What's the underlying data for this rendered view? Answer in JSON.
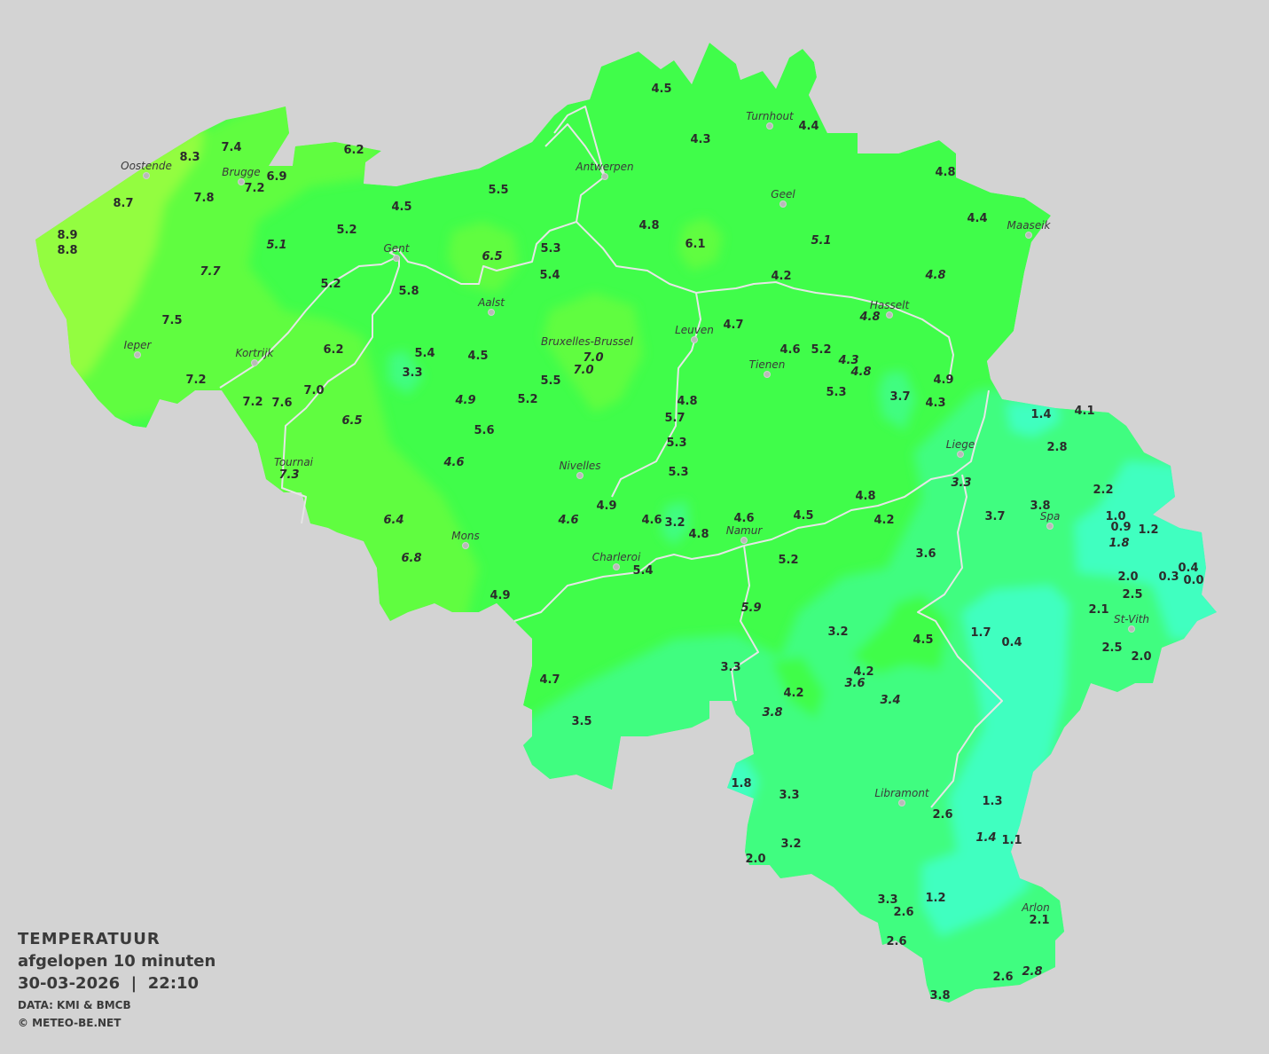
{
  "legend": {
    "title": "TEMPERATUUR",
    "subtitle": "afgelopen 10 minuten",
    "datetime": "30-03-2026  |  22:10",
    "source": "DATA: KMI & BMCB",
    "copyright": "© METEO-BE.NET"
  },
  "colors": {
    "background": "#d3d3d3",
    "zone_9": "#93fd40",
    "zone_7": "#60fd40",
    "zone_5": "#40fd4a",
    "zone_3": "#40fd80",
    "zone_1": "#40ffc0",
    "river": "#e6e6e6",
    "label": "#2b2b2b"
  },
  "cities": [
    "Oostende",
    "Brugge",
    "Gent",
    "Antwerpen",
    "Turnhout",
    "Geel",
    "Maaseik",
    "Aalst",
    "Hasselt",
    "Leuven",
    "Bruxelles-Brussel",
    "Tienen",
    "Ieper",
    "Kortrijk",
    "Liege",
    "Tournai",
    "Nivelles",
    "Spa",
    "Mons",
    "Charleroi",
    "Namur",
    "St-Vith",
    "Libramont",
    "Arlon"
  ],
  "readings": [
    "7.4",
    "8.3",
    "6.2",
    "6.9",
    "7.2",
    "8.7",
    "7.8",
    "8.9",
    "8.8",
    "5.1",
    "5.2",
    "4.5",
    "5.5",
    "7.7",
    "5.2",
    "5.8",
    "6.5",
    "5.3",
    "5.4",
    "7.5",
    "6.2",
    "5.4",
    "4.5",
    "3.3",
    "7.2",
    "7.0",
    "7.2",
    "7.6",
    "4.9",
    "5.2",
    "5.5",
    "6.5",
    "5.6",
    "4.6",
    "7.3",
    "6.4",
    "6.8",
    "4.9",
    "4.6",
    "4.9",
    "4.6",
    "3.2",
    "4.8",
    "4.6",
    "5.4",
    "4.7",
    "3.5",
    "4.5",
    "4.3",
    "4.4",
    "4.8",
    "4.4",
    "4.8",
    "6.1",
    "5.1",
    "4.2",
    "4.8",
    "4.7",
    "4.8",
    "7.0",
    "7.0",
    "4.6",
    "5.2",
    "4.3",
    "4.8",
    "5.3",
    "3.7",
    "4.9",
    "4.3",
    "4.8",
    "5.7",
    "5.3",
    "5.3",
    "4.5",
    "4.8",
    "4.2",
    "5.2",
    "5.9",
    "3.3",
    "3.2",
    "4.2",
    "3.8",
    "4.5",
    "4.2",
    "3.6",
    "3.4",
    "3.6",
    "1.4",
    "4.1",
    "2.8",
    "3.3",
    "3.7",
    "3.8",
    "2.2",
    "1.0",
    "0.9",
    "1.8",
    "1.2",
    "0.4",
    "0.3",
    "0.0",
    "2.0",
    "2.5",
    "2.1",
    "2.5",
    "2.0",
    "1.7",
    "0.4",
    "1.8",
    "3.3",
    "2.6",
    "1.3",
    "1.4",
    "1.1",
    "3.2",
    "2.0",
    "1.2",
    "3.3",
    "2.6",
    "2.1",
    "2.6",
    "2.6",
    "2.8",
    "3.8"
  ]
}
